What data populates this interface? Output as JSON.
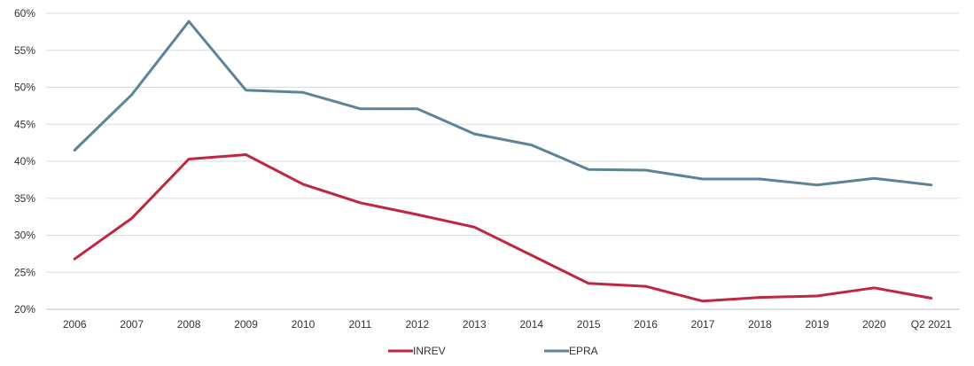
{
  "chart_data": {
    "type": "line",
    "categories": [
      "2006",
      "2007",
      "2008",
      "2009",
      "2010",
      "2011",
      "2012",
      "2013",
      "2014",
      "2015",
      "2016",
      "2017",
      "2018",
      "2019",
      "2020",
      "Q2 2021"
    ],
    "series": [
      {
        "name": "INREV",
        "color": "#c0263f",
        "values": [
          26.8,
          32.3,
          40.3,
          40.9,
          36.9,
          34.4,
          32.8,
          31.1,
          27.3,
          23.5,
          23.1,
          21.1,
          21.6,
          21.8,
          22.9,
          21.5
        ]
      },
      {
        "name": "EPRA",
        "color": "#5b8499",
        "values": [
          41.5,
          49.0,
          58.9,
          49.6,
          49.3,
          47.1,
          47.1,
          43.7,
          42.2,
          38.9,
          38.8,
          37.6,
          37.6,
          36.8,
          37.7,
          36.8
        ]
      }
    ],
    "y_ticks": [
      "20%",
      "25%",
      "30%",
      "35%",
      "40%",
      "45%",
      "50%",
      "55%",
      "60%"
    ],
    "ylim": [
      20,
      60
    ],
    "grid": true,
    "legend_position": "bottom"
  }
}
